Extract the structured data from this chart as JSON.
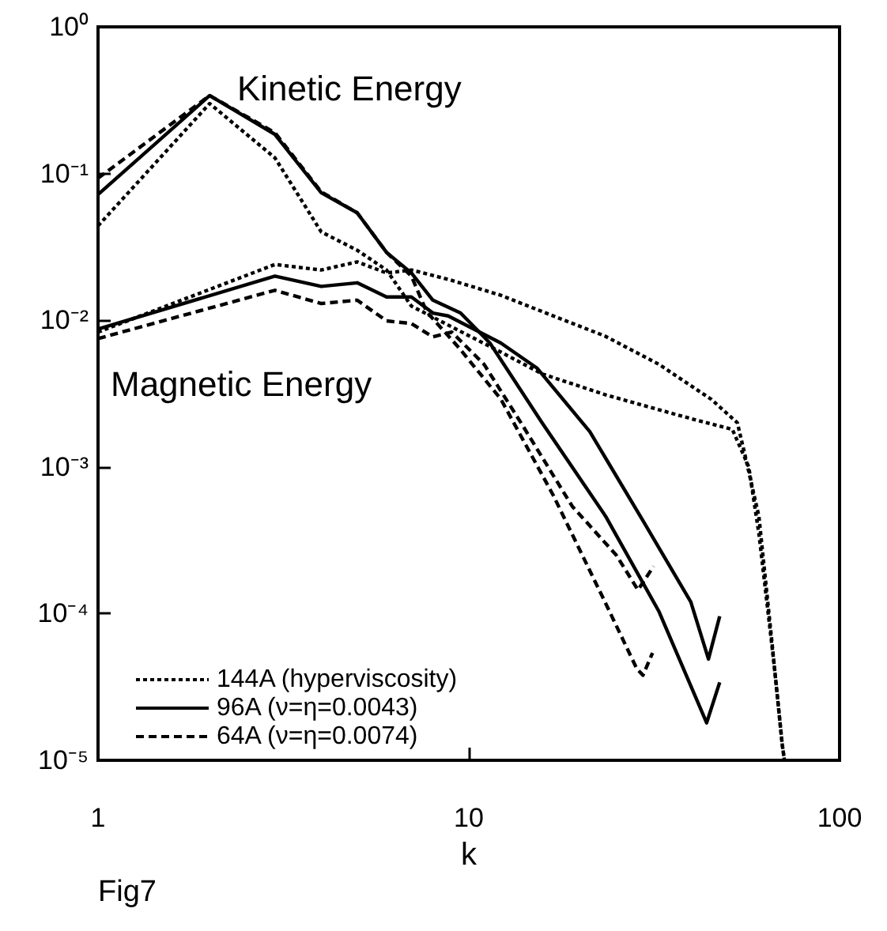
{
  "chart_data": {
    "type": "line",
    "xlabel": "k",
    "log": "xy",
    "grid": false,
    "legend": "bottom left",
    "marker": "none",
    "xlim": [
      1,
      100
    ],
    "xticks": [
      1,
      10,
      100
    ],
    "ylim": [
      1e-05,
      1
    ],
    "yticks": [
      {
        "value": 1e-05,
        "label": "10⁻⁵"
      },
      {
        "value": 0.0001,
        "label": "10⁻⁴"
      },
      {
        "value": 0.001,
        "label": "10⁻³"
      },
      {
        "value": 0.01,
        "label": "10⁻²"
      },
      {
        "value": 0.1,
        "label": "10⁻¹"
      },
      {
        "value": 1,
        "label": "10⁰"
      }
    ],
    "annotations": [
      "Kinetic Energy",
      "Magnetic Energy",
      "Fig7"
    ],
    "series": [
      {
        "name": "144A (hyperviscosity)",
        "color": "#000000",
        "line_style": "dotted",
        "x": [
          1,
          2,
          3,
          4,
          5,
          6,
          7,
          9,
          12,
          15.8,
          23.4,
          38,
          51.4,
          56.9,
          60.6,
          66.6,
          70,
          71
        ],
        "values": [
          0.044,
          0.3,
          0.128,
          0.04,
          0.03,
          0.022,
          0.0125,
          0.009,
          0.0062,
          0.0043,
          0.0031,
          0.0022,
          0.0018,
          0.001,
          0.00035,
          4.5e-05,
          1.3e-05,
          1e-05
        ]
      },
      {
        "name": "96A (ν=η=0.0043)",
        "color": "#000000",
        "line_style": "solid",
        "x": [
          1,
          2,
          3,
          4,
          5,
          6,
          7,
          8,
          9.5,
          11.4,
          15.7,
          23.4,
          32.6,
          43.8,
          47.5
        ],
        "values": [
          0.072,
          0.34,
          0.185,
          0.074,
          0.054,
          0.029,
          0.021,
          0.0137,
          0.0112,
          0.007,
          0.00203,
          0.00046,
          0.000103,
          1.8e-05,
          3.4e-05
        ]
      },
      {
        "name": "64A (ν=η=0.0074)",
        "color": "#000000",
        "line_style": "dashed",
        "x": [
          1,
          2,
          3,
          4,
          5,
          6,
          7,
          7.7,
          9.4,
          12.2,
          16.9,
          23.3,
          28.4,
          29.5,
          31.3
        ],
        "values": [
          0.093,
          0.34,
          0.19,
          0.075,
          0.054,
          0.029,
          0.02,
          0.0114,
          0.0065,
          0.0029,
          0.00064,
          0.00012,
          4.2e-05,
          3.8e-05,
          5.4e-05
        ]
      },
      {
        "color": "#000000",
        "line_style": "dotted",
        "x": [
          1,
          3,
          4,
          5,
          6,
          7,
          8.8,
          12.2,
          16.9,
          23.3,
          32.6,
          45,
          53,
          55.6,
          60.6,
          65.5,
          70,
          71
        ],
        "values": [
          0.0083,
          0.024,
          0.022,
          0.025,
          0.021,
          0.022,
          0.019,
          0.0148,
          0.0107,
          0.0078,
          0.005,
          0.0029,
          0.002,
          0.0012,
          0.00046,
          6.9e-05,
          1.3e-05,
          1e-05
        ]
      },
      {
        "color": "#000000",
        "line_style": "solid",
        "x": [
          1,
          3,
          4,
          5,
          6,
          7,
          8,
          8.8,
          12.2,
          15.3,
          21.2,
          29.5,
          39.7,
          44.3,
          47.5
        ],
        "values": [
          0.0087,
          0.02,
          0.017,
          0.018,
          0.0144,
          0.0144,
          0.0112,
          0.0107,
          0.007,
          0.0047,
          0.00174,
          0.00043,
          0.00012,
          4.9e-05,
          9.6e-05
        ]
      },
      {
        "color": "#000000",
        "line_style": "dashed",
        "x": [
          1,
          3,
          4,
          5,
          6,
          7,
          8,
          9,
          11,
          14,
          19,
          25,
          28.6,
          31.5
        ],
        "values": [
          0.0075,
          0.016,
          0.013,
          0.0137,
          0.0099,
          0.0095,
          0.0077,
          0.0083,
          0.005,
          0.0019,
          0.00054,
          0.00025,
          0.000145,
          0.00021
        ]
      }
    ]
  }
}
